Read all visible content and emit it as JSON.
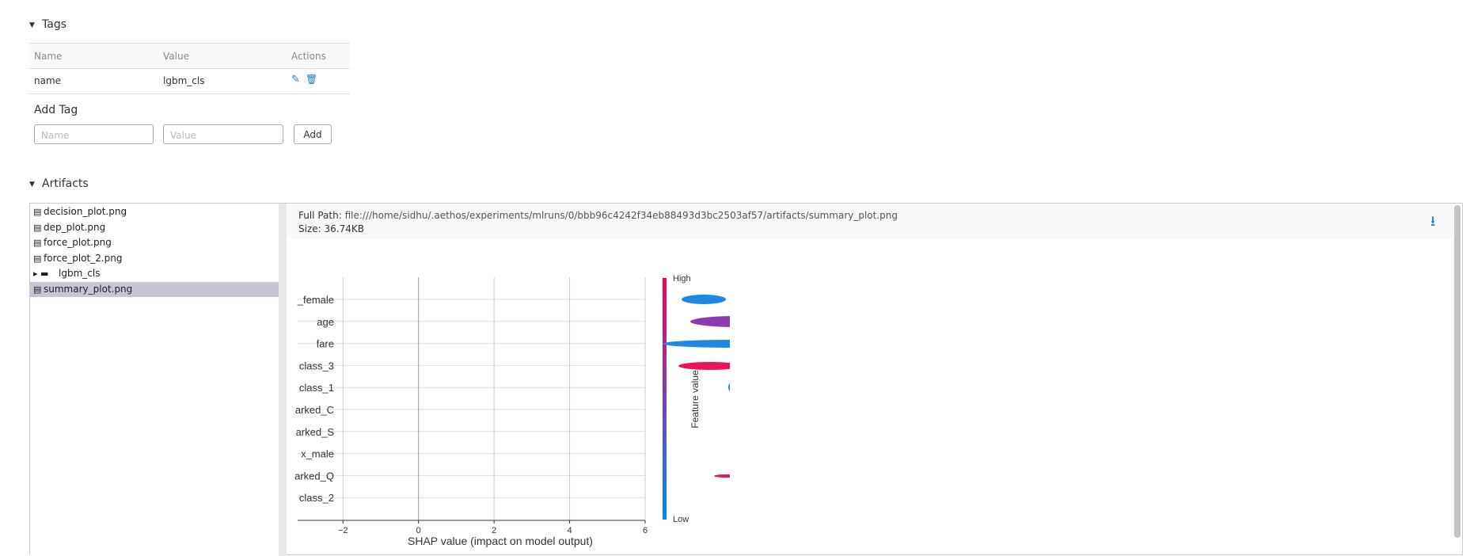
{
  "tags": {
    "title": "Tags",
    "columns": [
      "Name",
      "Value",
      "Actions"
    ],
    "rows": [
      [
        "name",
        "lgbm_cls"
      ]
    ],
    "add_title": "Add Tag",
    "name_placeholder": "Name",
    "value_placeholder": "Value",
    "add_button": "Add"
  },
  "artifacts": {
    "title": "Artifacts",
    "files": [
      "decision_plot.png",
      "dep_plot.png",
      "force_plot.png",
      "force_plot_2.png",
      "lgbm_cls",
      "summary_plot.png"
    ],
    "full_path_label": "Full Path:",
    "full_path": "file:///home/sidhu/.aethos/experiments/mlruns/0/bbb96c4242f34eb88493d3bc2503af57/artifacts/summary_plot.png",
    "size_label": "Size:",
    "size": "36.74KB"
  },
  "chart_data": {
    "type": "beeswarm",
    "categories": [
      "_female",
      "age",
      "fare",
      "class_3",
      "class_1",
      "arked_C",
      "arked_S",
      "x_male",
      "arked_Q",
      "class_2"
    ],
    "xlabel": "SHAP value (impact on model output)",
    "xlim": [
      -3.2,
      6
    ],
    "xticks": [
      {
        "value": -2,
        "label": "−2"
      },
      0,
      2,
      4,
      6
    ],
    "colorbar_high": "High",
    "colorbar_low": "Low",
    "colorbar_label": "Feature value"
  }
}
